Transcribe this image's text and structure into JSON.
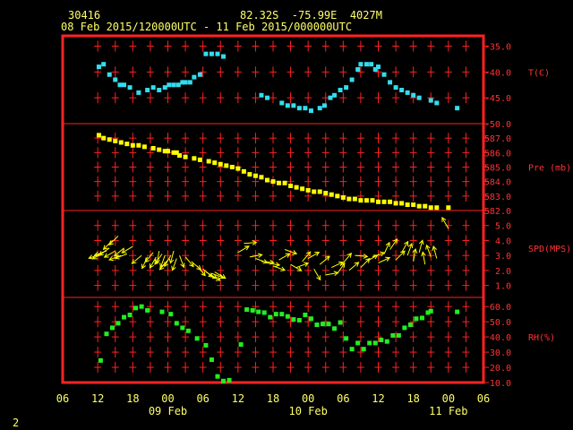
{
  "header": {
    "station": "30416",
    "location": "82.32S  -75.99E  4027M",
    "timespan": "08 Feb 2015/120000UTC - 11 Feb 2015/000000UTC"
  },
  "page_number": "2",
  "chart_data": {
    "type": "scatter",
    "x_unit": "hours since 08 Feb 2015 06UTC",
    "xlim": [
      0,
      72
    ],
    "x_ticks": [
      {
        "h": 0,
        "label": "06"
      },
      {
        "h": 6,
        "label": "12"
      },
      {
        "h": 12,
        "label": "18"
      },
      {
        "h": 18,
        "label": "00"
      },
      {
        "h": 24,
        "label": "06"
      },
      {
        "h": 30,
        "label": "12"
      },
      {
        "h": 36,
        "label": "18"
      },
      {
        "h": 42,
        "label": "00"
      },
      {
        "h": 48,
        "label": "06"
      },
      {
        "h": 54,
        "label": "12"
      },
      {
        "h": 60,
        "label": "18"
      },
      {
        "h": 66,
        "label": "00"
      },
      {
        "h": 72,
        "label": "06"
      }
    ],
    "date_labels": [
      {
        "h": 18,
        "label": "09 Feb"
      },
      {
        "h": 42,
        "label": "10 Feb"
      },
      {
        "h": 66,
        "label": "11 Feb"
      }
    ],
    "panels": [
      {
        "name": "temperature",
        "label": "T(C)",
        "color": "#33ddee",
        "ylim": [
          -50,
          -33
        ],
        "ticks": [
          "-35.0",
          "-40.0",
          "-45.0",
          "-50.0"
        ],
        "tick_values": [
          -35,
          -40,
          -45,
          -50
        ],
        "x": [
          6.2,
          7,
          8,
          9,
          9.8,
          10.5,
          11.5,
          13,
          14.5,
          15.5,
          16.5,
          17.5,
          18.2,
          19,
          19.8,
          20.5,
          21,
          21.8,
          22.5,
          23.5,
          24.5,
          25.5,
          26.5,
          27.5,
          34,
          35,
          37.5,
          38.5,
          39.5,
          40.5,
          41.5,
          42.5,
          44,
          44.8,
          45.8,
          46.5,
          47.5,
          48.5,
          49.5,
          50.5,
          51,
          52,
          52.8,
          53.5,
          54,
          55,
          56,
          57,
          58,
          59,
          60,
          61,
          63,
          64,
          67.5
        ],
        "y": [
          -39.0,
          -38.5,
          -40.5,
          -41.5,
          -42.5,
          -42.5,
          -43.0,
          -44.0,
          -43.5,
          -43.0,
          -43.5,
          -43.0,
          -42.5,
          -42.5,
          -42.5,
          -42.0,
          -42.0,
          -42.0,
          -41.0,
          -40.5,
          -36.5,
          -36.5,
          -36.5,
          -37.0,
          -44.5,
          -45.0,
          -46.0,
          -46.5,
          -46.5,
          -47.0,
          -47.0,
          -47.5,
          -47.0,
          -46.5,
          -45.0,
          -44.5,
          -43.5,
          -43.0,
          -41.5,
          -39.5,
          -38.5,
          -38.5,
          -38.5,
          -39.5,
          -39.0,
          -40.5,
          -42.0,
          -43.0,
          -43.5,
          -44.0,
          -44.5,
          -45.0,
          -45.5,
          -46.0,
          -47.0
        ]
      },
      {
        "name": "pressure",
        "label": "Pre (mb)",
        "color": "#ffff00",
        "ylim": [
          582,
          588
        ],
        "ticks": [
          "587.0",
          "586.0",
          "585.0",
          "584.0",
          "583.0",
          "582.0"
        ],
        "tick_values": [
          587,
          586,
          585,
          584,
          583,
          582
        ],
        "x": [
          6.2,
          7,
          8,
          9,
          10,
          11,
          12,
          13,
          14,
          15.5,
          16.5,
          17.5,
          18,
          19,
          19.5,
          20,
          21,
          22.5,
          23.5,
          25,
          26,
          27,
          28,
          29,
          30,
          31,
          32,
          33,
          34,
          35,
          36,
          37,
          38,
          39,
          40,
          41,
          42,
          43,
          44,
          45,
          46,
          47,
          48,
          49,
          50,
          51,
          52,
          53,
          54,
          55,
          56,
          57,
          58,
          59,
          60,
          61,
          62,
          63,
          64,
          66
        ],
        "y": [
          587.2,
          587.0,
          586.9,
          586.8,
          586.7,
          586.6,
          586.5,
          586.5,
          586.4,
          586.3,
          586.2,
          586.1,
          586.1,
          586.0,
          586.0,
          585.8,
          585.7,
          585.6,
          585.5,
          585.4,
          585.3,
          585.2,
          585.1,
          585.0,
          584.9,
          584.7,
          584.5,
          584.4,
          584.3,
          584.1,
          584.0,
          583.9,
          583.9,
          583.7,
          583.6,
          583.5,
          583.4,
          583.3,
          583.3,
          583.2,
          583.1,
          583.0,
          582.9,
          582.8,
          582.8,
          582.7,
          582.7,
          582.7,
          582.6,
          582.6,
          582.6,
          582.5,
          582.5,
          582.4,
          582.4,
          582.3,
          582.3,
          582.2,
          582.2,
          582.2
        ]
      },
      {
        "name": "wind",
        "label": "SPD(MPS)",
        "color": "#ffff00",
        "ylim": [
          0.2,
          6.0
        ],
        "ticks": [
          "5.0",
          "4.0",
          "3.0",
          "2.0",
          "1.0"
        ],
        "tick_values": [
          5,
          4,
          3,
          2,
          1
        ],
        "x": [
          6.5,
          7,
          7.5,
          8,
          8.5,
          9,
          9.5,
          10,
          10.5,
          11,
          12,
          13.5,
          14.5,
          15.5,
          16,
          16.5,
          17,
          17.5,
          18,
          18.5,
          19,
          19.5,
          20,
          21,
          22,
          23,
          24,
          24.5,
          25,
          25.5,
          26,
          30,
          31,
          32,
          33,
          34,
          35,
          36,
          37,
          38,
          39,
          40,
          41,
          42,
          43,
          44,
          45,
          46,
          47,
          48,
          49,
          50,
          51,
          52,
          53,
          54,
          55,
          56,
          57,
          58,
          59,
          60,
          61,
          62,
          63,
          64,
          66
        ],
        "y": [
          3.1,
          3.2,
          3.3,
          3.5,
          4.0,
          3.3,
          4.3,
          3.0,
          3.5,
          3.1,
          3.6,
          3.0,
          2.9,
          3.2,
          2.9,
          3.3,
          3.1,
          3.0,
          2.7,
          3.0,
          3.3,
          2.8,
          3.0,
          2.9,
          2.6,
          2.3,
          2.1,
          1.9,
          1.7,
          1.8,
          1.9,
          3.2,
          3.8,
          2.9,
          2.8,
          2.6,
          2.5,
          2.3,
          2.7,
          3.4,
          2.4,
          2.2,
          2.6,
          2.8,
          2.1,
          2.4,
          1.7,
          2.2,
          1.8,
          2.5,
          2.0,
          3.0,
          2.2,
          2.6,
          2.9,
          2.5,
          3.1,
          3.4,
          2.7,
          3.2,
          3.0,
          2.6,
          3.2,
          2.4,
          2.9,
          2.8,
          4.8
        ],
        "dir": [
          250,
          240,
          250,
          235,
          225,
          240,
          225,
          250,
          230,
          250,
          240,
          230,
          205,
          220,
          210,
          190,
          215,
          200,
          220,
          210,
          195,
          200,
          160,
          140,
          130,
          140,
          130,
          120,
          115,
          110,
          120,
          60,
          85,
          80,
          110,
          95,
          100,
          110,
          60,
          110,
          120,
          70,
          40,
          60,
          150,
          50,
          80,
          65,
          35,
          40,
          50,
          95,
          45,
          60,
          70,
          65,
          25,
          35,
          45,
          30,
          20,
          10,
          15,
          350,
          340,
          345,
          330
        ]
      },
      {
        "name": "humidity",
        "label": "RH(%)",
        "color": "#22ee22",
        "ylim": [
          10,
          66
        ],
        "ticks": [
          "60.0",
          "50.0",
          "40.0",
          "30.0",
          "20.0",
          "10.0"
        ],
        "tick_values": [
          60,
          50,
          40,
          30,
          20,
          10
        ],
        "x": [
          6.5,
          7.5,
          8.5,
          9.5,
          10.5,
          11.5,
          12.5,
          13.5,
          14.5,
          17,
          18.5,
          19.5,
          20.5,
          21.5,
          23,
          24.5,
          25.5,
          26.5,
          27.5,
          28.5,
          30.5,
          31.5,
          32.5,
          33.5,
          34.5,
          35.5,
          36.5,
          37.5,
          38.5,
          39.5,
          40.5,
          41.5,
          42.5,
          43.5,
          44.5,
          45.5,
          46.5,
          47.5,
          48.5,
          49.5,
          50.5,
          51.5,
          52.5,
          53.5,
          54.5,
          55.5,
          56.5,
          57.5,
          58.5,
          59.5,
          60.5,
          61.5,
          62.5,
          63,
          67.5
        ],
        "y": [
          24.5,
          42,
          46,
          49,
          53,
          54.5,
          59,
          60,
          57.5,
          56.5,
          55,
          49,
          46,
          44,
          39,
          34.5,
          25,
          14,
          11,
          11.5,
          35,
          58,
          57.5,
          56.5,
          56,
          53,
          55,
          55,
          53.5,
          51.5,
          51,
          54.5,
          52,
          48,
          48.5,
          48.5,
          45.5,
          49.5,
          39,
          32,
          36,
          32,
          36,
          36,
          38,
          37,
          41,
          41,
          46,
          48,
          52,
          52.5,
          56,
          57,
          56.5
        ]
      }
    ]
  }
}
